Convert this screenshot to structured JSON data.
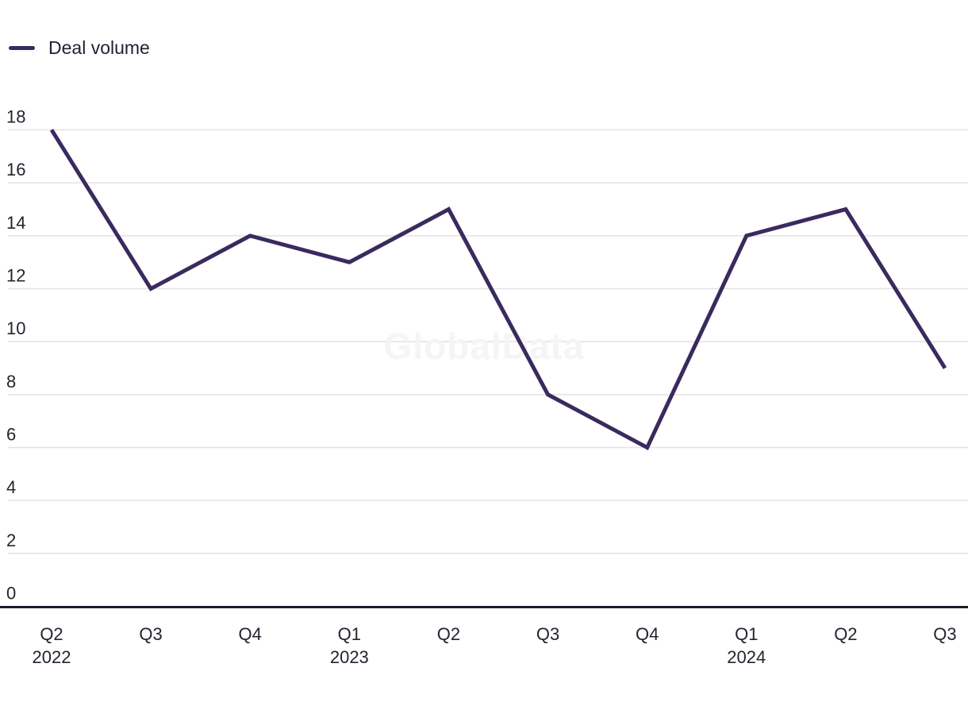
{
  "chart_data": {
    "type": "line",
    "title": "",
    "legend": [
      "Deal volume"
    ],
    "legend_position": "top-left",
    "watermark": "GlobalData",
    "categories": [
      "Q2 2022",
      "Q3",
      "Q4",
      "Q1 2023",
      "Q2",
      "Q3",
      "Q4",
      "Q1 2024",
      "Q2",
      "Q3"
    ],
    "x_labels": [
      {
        "q": "Q2",
        "year": "2022"
      },
      {
        "q": "Q3",
        "year": ""
      },
      {
        "q": "Q4",
        "year": ""
      },
      {
        "q": "Q1",
        "year": "2023"
      },
      {
        "q": "Q2",
        "year": ""
      },
      {
        "q": "Q3",
        "year": ""
      },
      {
        "q": "Q4",
        "year": ""
      },
      {
        "q": "Q1",
        "year": "2024"
      },
      {
        "q": "Q2",
        "year": ""
      },
      {
        "q": "Q3",
        "year": ""
      }
    ],
    "series": [
      {
        "name": "Deal volume",
        "values": [
          18,
          12,
          14,
          13,
          15,
          8,
          6,
          14,
          15,
          9
        ]
      }
    ],
    "xlabel": "",
    "ylabel": "",
    "ylim": [
      0,
      18
    ],
    "yticks": [
      0,
      2,
      4,
      6,
      8,
      10,
      12,
      14,
      16,
      18
    ],
    "grid": "horizontal",
    "colors": {
      "line": "#3a2a5e",
      "axis": "#1a1b2e",
      "grid": "#e2e2e2",
      "tick_text": "#23242f",
      "watermark": "#f5f5f5"
    }
  }
}
